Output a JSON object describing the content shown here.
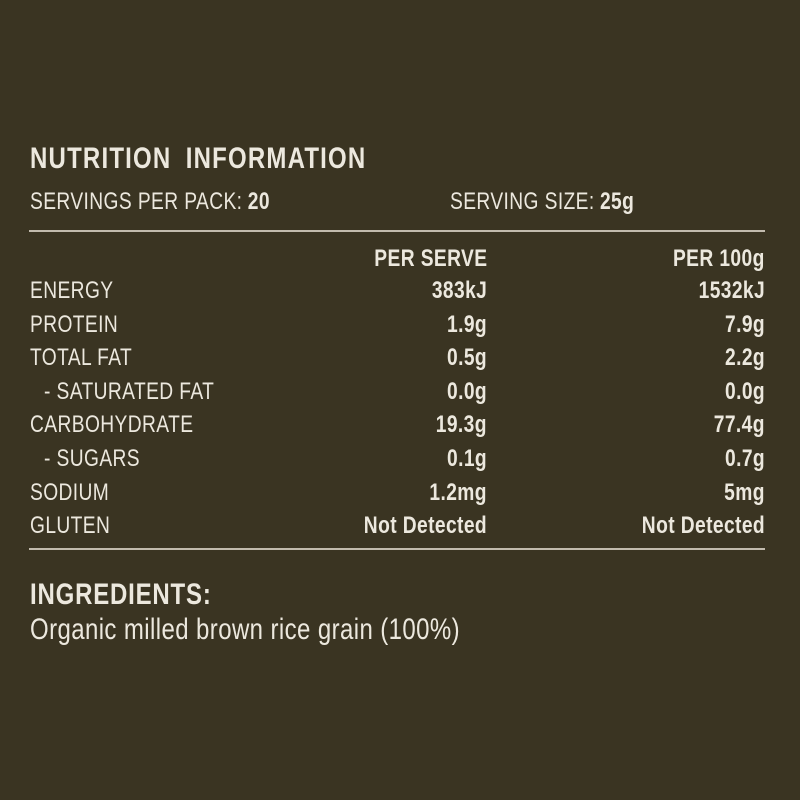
{
  "colors": {
    "background": "#3a3422",
    "text": "#ece8de",
    "divider": "#c2bbae"
  },
  "panel": {
    "title": "NUTRITION INFORMATION",
    "servings_label": "SERVINGS PER PACK:",
    "servings_value": "20",
    "serving_size_label": "SERVING SIZE:",
    "serving_size_value": "25g",
    "columns": {
      "per_serve": "PER SERVE",
      "per_100g": "PER 100g"
    },
    "rows": [
      {
        "label": "ENERGY",
        "per_serve": "383kJ",
        "per_100g": "1532kJ"
      },
      {
        "label": "PROTEIN",
        "per_serve": "1.9g",
        "per_100g": "7.9g"
      },
      {
        "label": "TOTAL FAT",
        "per_serve": "0.5g",
        "per_100g": "2.2g"
      },
      {
        "label": "- SATURATED FAT",
        "per_serve": "0.0g",
        "per_100g": "0.0g"
      },
      {
        "label": "CARBOHYDRATE",
        "per_serve": "19.3g",
        "per_100g": "77.4g"
      },
      {
        "label": "- SUGARS",
        "per_serve": "0.1g",
        "per_100g": "0.7g"
      },
      {
        "label": "SODIUM",
        "per_serve": "1.2mg",
        "per_100g": "5mg"
      },
      {
        "label": "GLUTEN",
        "per_serve": "Not Detected",
        "per_100g": "Not Detected"
      }
    ],
    "ingredients_title": "INGREDIENTS:",
    "ingredients_text": "Organic milled brown rice grain (100%)"
  }
}
